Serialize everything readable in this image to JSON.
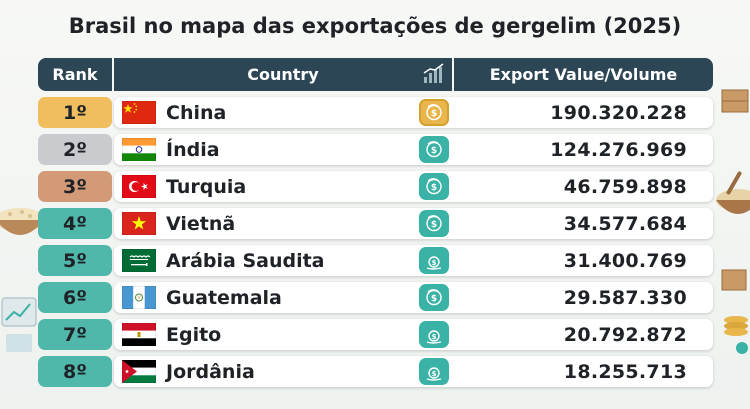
{
  "chart_data": {
    "type": "table",
    "title": "Brasil no mapa das exportações de gergelim (2025)",
    "columns": [
      "Rank",
      "Country",
      "Export Value/Volume"
    ],
    "rows": [
      {
        "rank": "1º",
        "country": "China",
        "flag": "cn-flag-icon",
        "value_text": "190.320.228",
        "value": 190320228
      },
      {
        "rank": "2º",
        "country": "Índia",
        "flag": "in-flag-icon",
        "value_text": "124.276.969",
        "value": 124276969
      },
      {
        "rank": "3º",
        "country": "Turquia",
        "flag": "tr-flag-icon",
        "value_text": "46.759.898",
        "value": 46759898
      },
      {
        "rank": "4º",
        "country": "Vietnã",
        "flag": "vn-flag-icon",
        "value_text": "34.577.684",
        "value": 34577684
      },
      {
        "rank": "5º",
        "country": "Arábia Saudita",
        "flag": "sa-flag-icon",
        "value_text": "31.400.769",
        "value": 31400769
      },
      {
        "rank": "6º",
        "country": "Guatemala",
        "flag": "gt-flag-icon",
        "value_text": "29.587.330",
        "value": 29587330
      },
      {
        "rank": "7º",
        "country": "Egito",
        "flag": "eg-flag-icon",
        "value_text": "20.792.872",
        "value": 20792872
      },
      {
        "rank": "8º",
        "country": "Jordânia",
        "flag": "jo-flag-icon",
        "value_text": "18.255.713",
        "value": 18255713
      }
    ],
    "rank_colors": [
      "#f0be5f",
      "#c9ccce",
      "#d39a78",
      "#4fb8aa",
      "#4fb8aa",
      "#4fb8aa",
      "#4fb8aa",
      "#4fb8aa"
    ],
    "header_color": "#2d4656",
    "icon_color_gold": "#e8b64a",
    "icon_color_teal": "#3ab2a5"
  }
}
